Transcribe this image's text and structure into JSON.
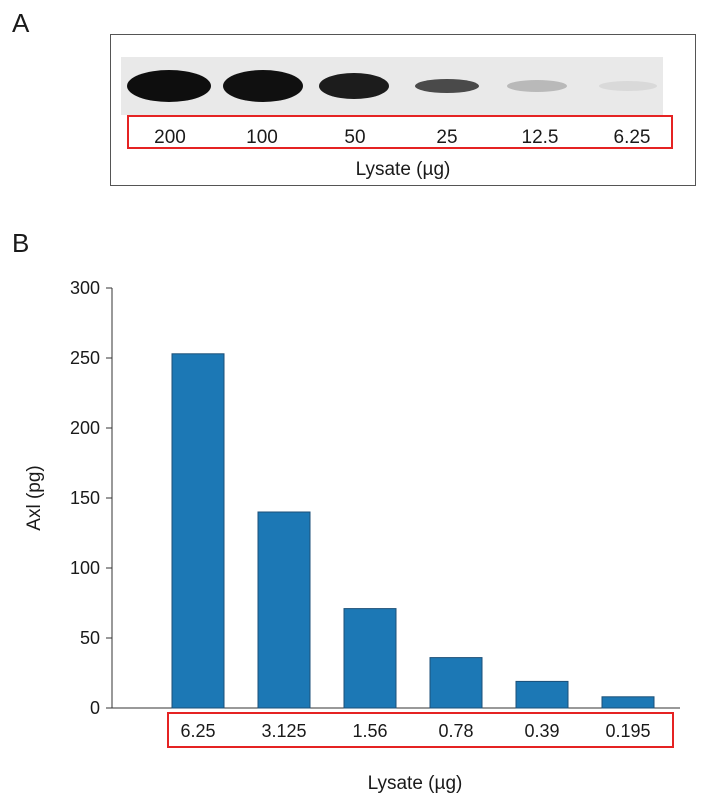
{
  "panel_a": {
    "letter": "A",
    "lanes": [
      "200",
      "100",
      "50",
      "25",
      "12.5",
      "6.25"
    ],
    "unit_label": "Lysate (µg)"
  },
  "panel_b": {
    "letter": "B"
  },
  "chart_data": {
    "type": "bar",
    "title": "",
    "xlabel": "Lysate (µg)",
    "ylabel": "Axl (pg)",
    "categories": [
      "6.25",
      "3.125",
      "1.56",
      "0.78",
      "0.39",
      "0.195"
    ],
    "values": [
      253,
      140,
      71,
      36,
      19,
      8
    ],
    "ylim": [
      0,
      300
    ],
    "yticks": [
      0,
      50,
      100,
      150,
      200,
      250,
      300
    ],
    "bar_color": "#1c78b5",
    "grid": false,
    "legend": "none"
  }
}
